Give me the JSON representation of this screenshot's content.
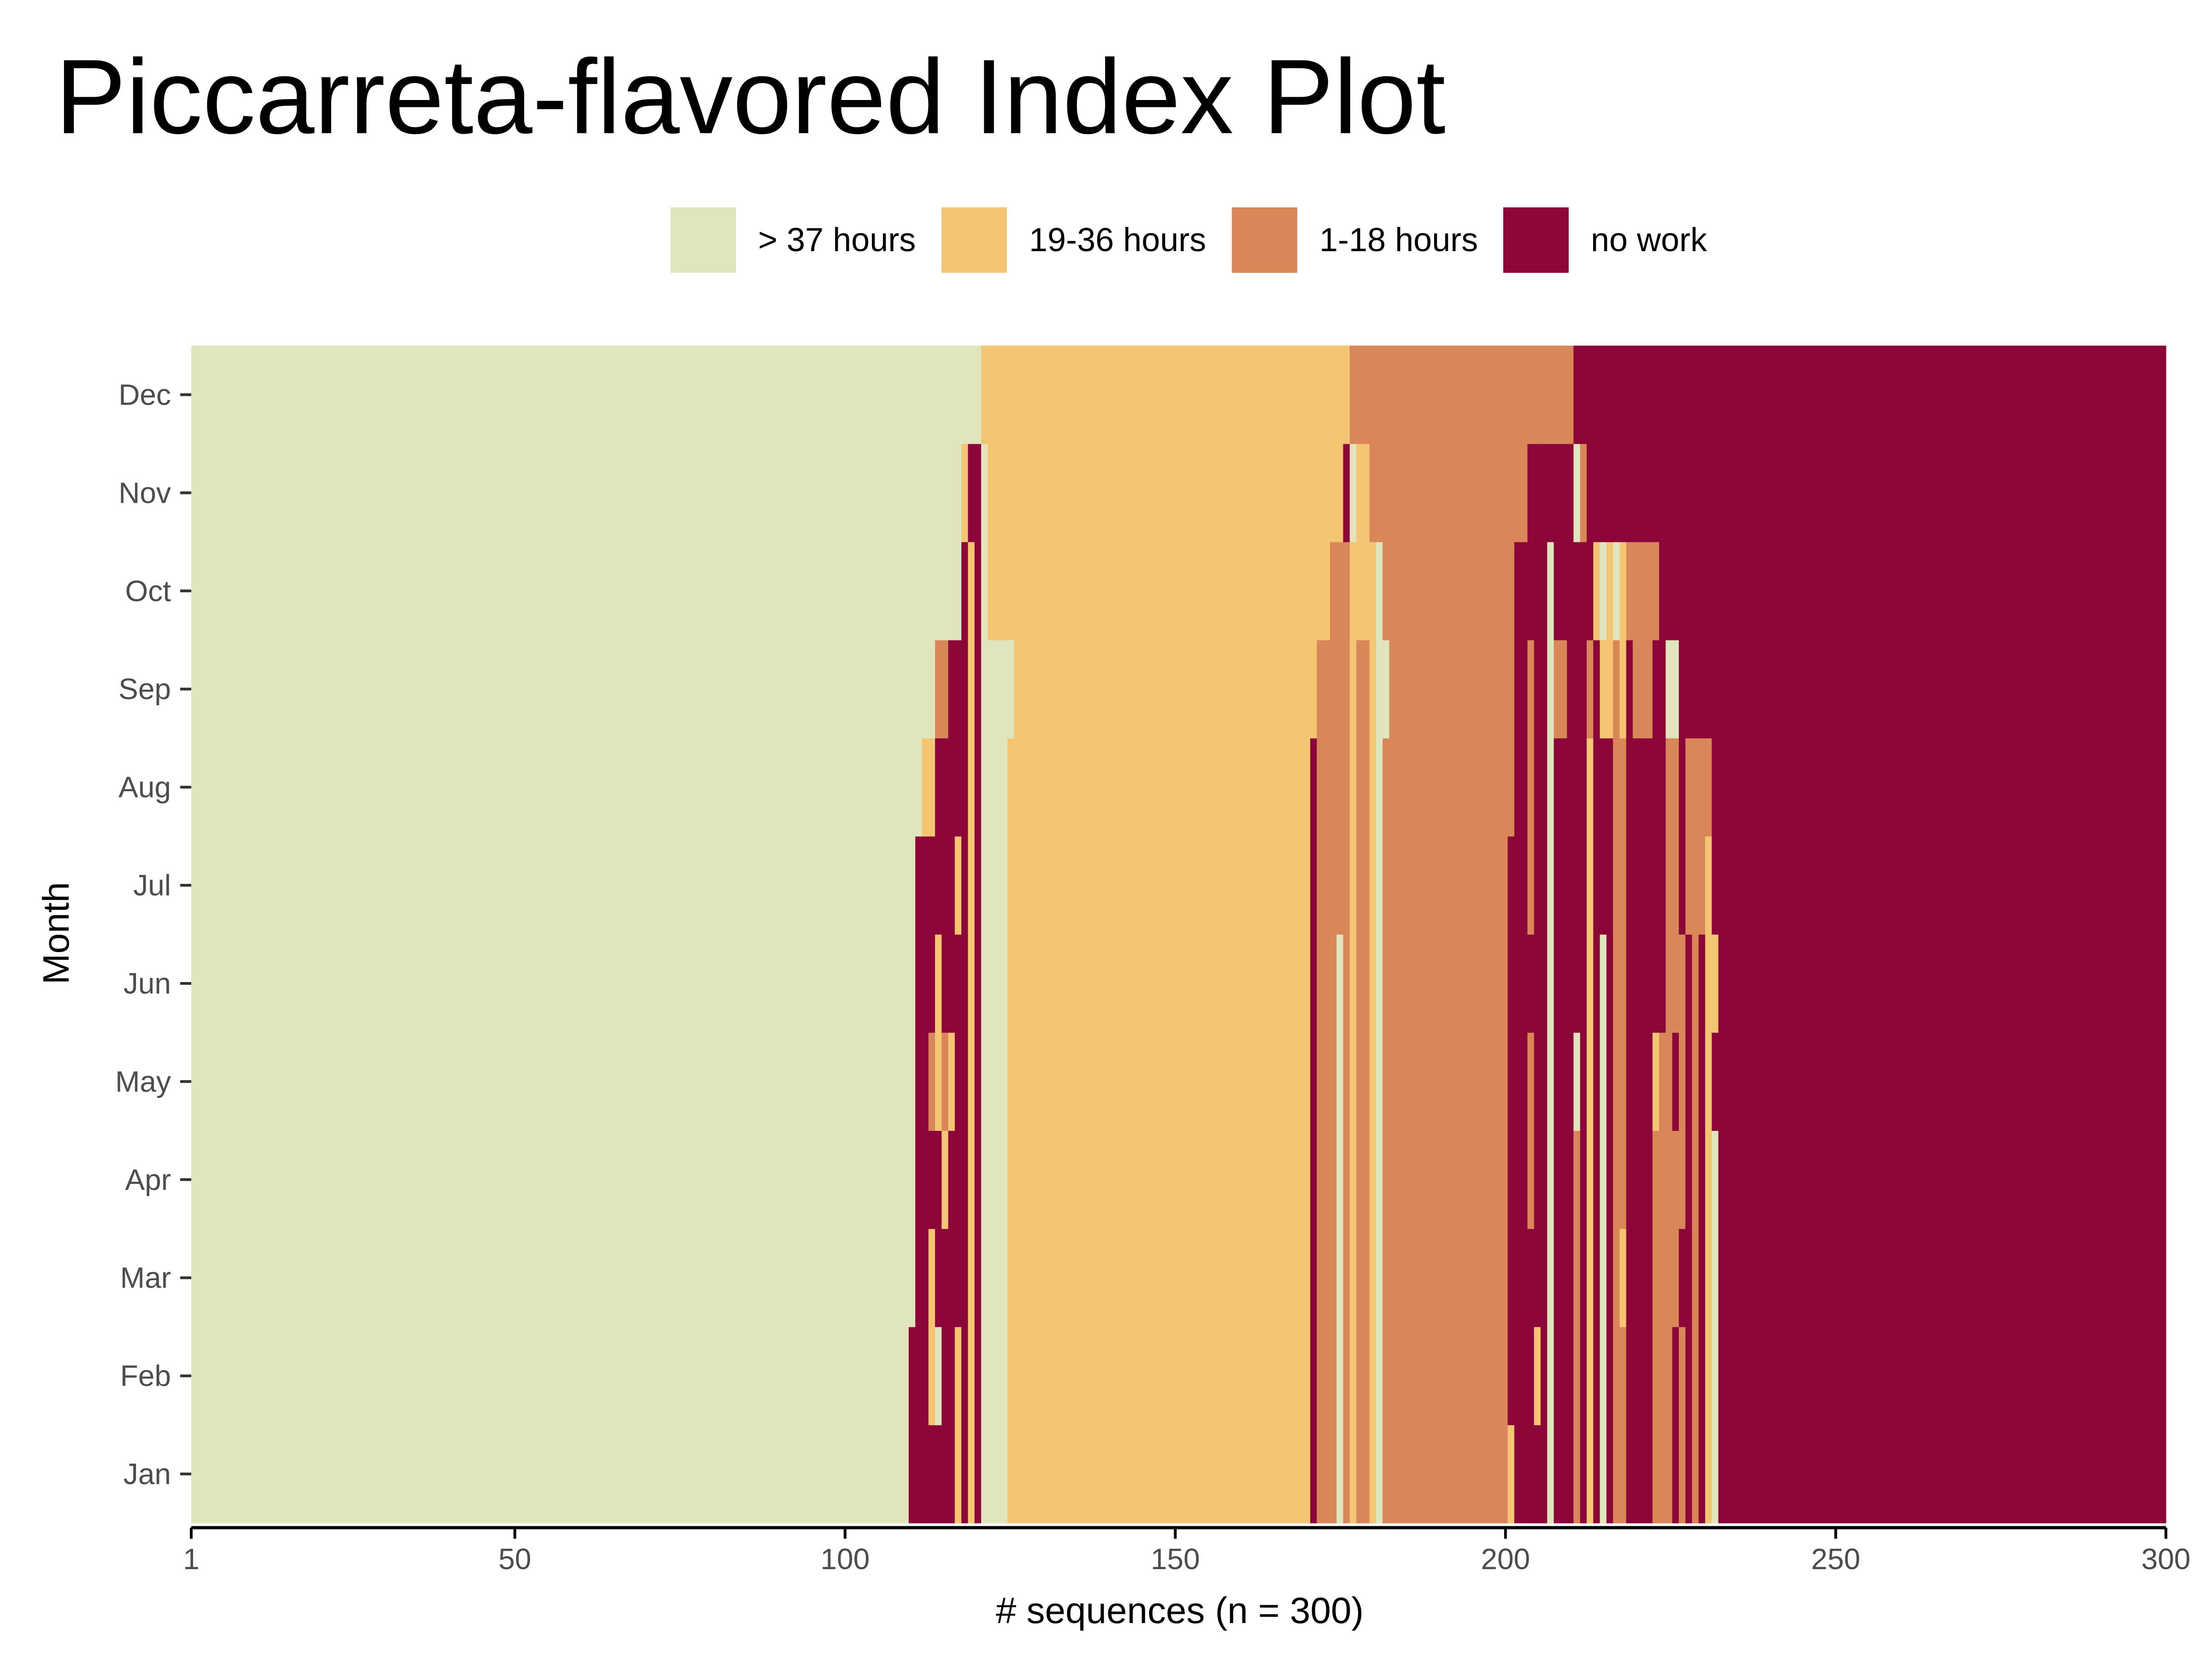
{
  "chart_data": {
    "type": "index-plot",
    "title": "Piccarreta-flavored Index Plot",
    "xlabel": "# sequences (n = 300)",
    "ylabel": "Month",
    "x_ticks": [
      1,
      50,
      100,
      150,
      200,
      250,
      300
    ],
    "xlim": [
      1,
      300
    ],
    "months": [
      "Jan",
      "Feb",
      "Mar",
      "Apr",
      "May",
      "Jun",
      "Jul",
      "Aug",
      "Sep",
      "Oct",
      "Nov",
      "Dec"
    ],
    "legend": [
      {
        "label": "> 37 hours",
        "color": "#E1E5BE",
        "state": "A"
      },
      {
        "label": "19-36 hours",
        "color": "#F4C674",
        "state": "B"
      },
      {
        "label": "1-18 hours",
        "color": "#D98659",
        "state": "C"
      },
      {
        "label": "no work",
        "color": "#8C063A",
        "state": "D"
      }
    ],
    "sequences": [
      {
        "from": 1,
        "to": 109,
        "months": "AAAAAAAAAAAA"
      },
      {
        "from": 110,
        "to": 110,
        "months": "DDAAAAAAAAAA"
      },
      {
        "from": 111,
        "to": 111,
        "months": "DDDDDDDAAAAA"
      },
      {
        "from": 112,
        "to": 112,
        "months": "DDDDDDDBAAAA"
      },
      {
        "from": 113,
        "to": 113,
        "months": "DBBDCDDBAAAA"
      },
      {
        "from": 114,
        "to": 114,
        "months": "DADDBBDDCAAA"
      },
      {
        "from": 115,
        "to": 115,
        "months": "DDDBCDDDCAAA"
      },
      {
        "from": 116,
        "to": 116,
        "months": "DDDDBDDDDAAA"
      },
      {
        "from": 117,
        "to": 117,
        "months": "BBDDDDBDDAAA"
      },
      {
        "from": 118,
        "to": 118,
        "months": "DDDDDDDDDDBA"
      },
      {
        "from": 119,
        "to": 119,
        "months": "BBBBBBBBBBDA"
      },
      {
        "from": 120,
        "to": 120,
        "months": "DDDDDDDDDDDA"
      },
      {
        "from": 121,
        "to": 121,
        "months": "AAAAAAAAAAAB"
      },
      {
        "from": 122,
        "to": 124,
        "months": "AAAAAAAAABBB"
      },
      {
        "from": 125,
        "to": 125,
        "months": "BBBBBBBBABBB"
      },
      {
        "from": 126,
        "to": 170,
        "months": "BBBBBBBBBBBB"
      },
      {
        "from": 171,
        "to": 171,
        "months": "DDDDDDDDBBBB"
      },
      {
        "from": 172,
        "to": 173,
        "months": "CCCCCCCCCBBB"
      },
      {
        "from": 174,
        "to": 174,
        "months": "CCCCCCCCCCBB"
      },
      {
        "from": 175,
        "to": 175,
        "months": "AAAAAACCCCBB"
      },
      {
        "from": 176,
        "to": 176,
        "months": "CCCCCCCCCCDB"
      },
      {
        "from": 177,
        "to": 177,
        "months": "BBBBBBBBBBAC"
      },
      {
        "from": 178,
        "to": 179,
        "months": "CCCCCCCCCBBC"
      },
      {
        "from": 180,
        "to": 180,
        "months": "BBBBBBBBBBCC"
      },
      {
        "from": 181,
        "to": 181,
        "months": "AAAAAAAAAACC"
      },
      {
        "from": 182,
        "to": 182,
        "months": "CCCCCCCCACCC"
      },
      {
        "from": 183,
        "to": 200,
        "months": "CCCCCCCCCCCC"
      },
      {
        "from": 201,
        "to": 201,
        "months": "BDDDDDDCCCCC"
      },
      {
        "from": 202,
        "to": 203,
        "months": "DDDDDDDDDDCC"
      },
      {
        "from": 204,
        "to": 204,
        "months": "DDDCCDCCCDDC"
      },
      {
        "from": 205,
        "to": 205,
        "months": "DBDDDDDDDDDC"
      },
      {
        "from": 206,
        "to": 206,
        "months": "DDDDDDDDDDDC"
      },
      {
        "from": 207,
        "to": 207,
        "months": "AAAAAAAAAADC"
      },
      {
        "from": 208,
        "to": 209,
        "months": "DDDDDDDDCDDC"
      },
      {
        "from": 210,
        "to": 210,
        "months": "DDDDDDDDDDDC"
      },
      {
        "from": 211,
        "to": 211,
        "months": "CCCCADDDDDAD"
      },
      {
        "from": 212,
        "to": 212,
        "months": "DDDDDDDDDDCD"
      },
      {
        "from": 213,
        "to": 213,
        "months": "BBBBBBBBCDDD"
      },
      {
        "from": 214,
        "to": 214,
        "months": "DDDDDDDDDBDD"
      },
      {
        "from": 215,
        "to": 215,
        "months": "AAAAAADDBADD"
      },
      {
        "from": 216,
        "to": 216,
        "months": "DDDDDDDDBBDD"
      },
      {
        "from": 217,
        "to": 217,
        "months": "CCCCCCCCCADD"
      },
      {
        "from": 218,
        "to": 218,
        "months": "CCBCCCCCBBDD"
      },
      {
        "from": 219,
        "to": 219,
        "months": "DDDDDDDDDCDD"
      },
      {
        "from": 220,
        "to": 221,
        "months": "DDDDDDDDCCDD"
      },
      {
        "from": 222,
        "to": 222,
        "months": "DDDDDDDDCCDD"
      },
      {
        "from": 223,
        "to": 223,
        "months": "CCCCBDDDDCDD"
      },
      {
        "from": 224,
        "to": 224,
        "months": "CCCCCDDDDDDD"
      },
      {
        "from": 225,
        "to": 225,
        "months": "CCCCCCCCADDD"
      },
      {
        "from": 226,
        "to": 226,
        "months": "DDCCDCCCADDD"
      },
      {
        "from": 227,
        "to": 227,
        "months": "CCDCCCDDDDDD"
      },
      {
        "from": 228,
        "to": 228,
        "months": "DDDDDDCCDDDD"
      },
      {
        "from": 229,
        "to": 229,
        "months": "CCCCCCCCDDDD"
      },
      {
        "from": 230,
        "to": 230,
        "months": "DDDDDDCCDDDD"
      },
      {
        "from": 231,
        "to": 231,
        "months": "BBBBBBBCDDDD"
      },
      {
        "from": 232,
        "to": 232,
        "months": "AAAADBDDDDDD"
      },
      {
        "from": 233,
        "to": 300,
        "months": "DDDDDDDDDDDD"
      }
    ]
  }
}
